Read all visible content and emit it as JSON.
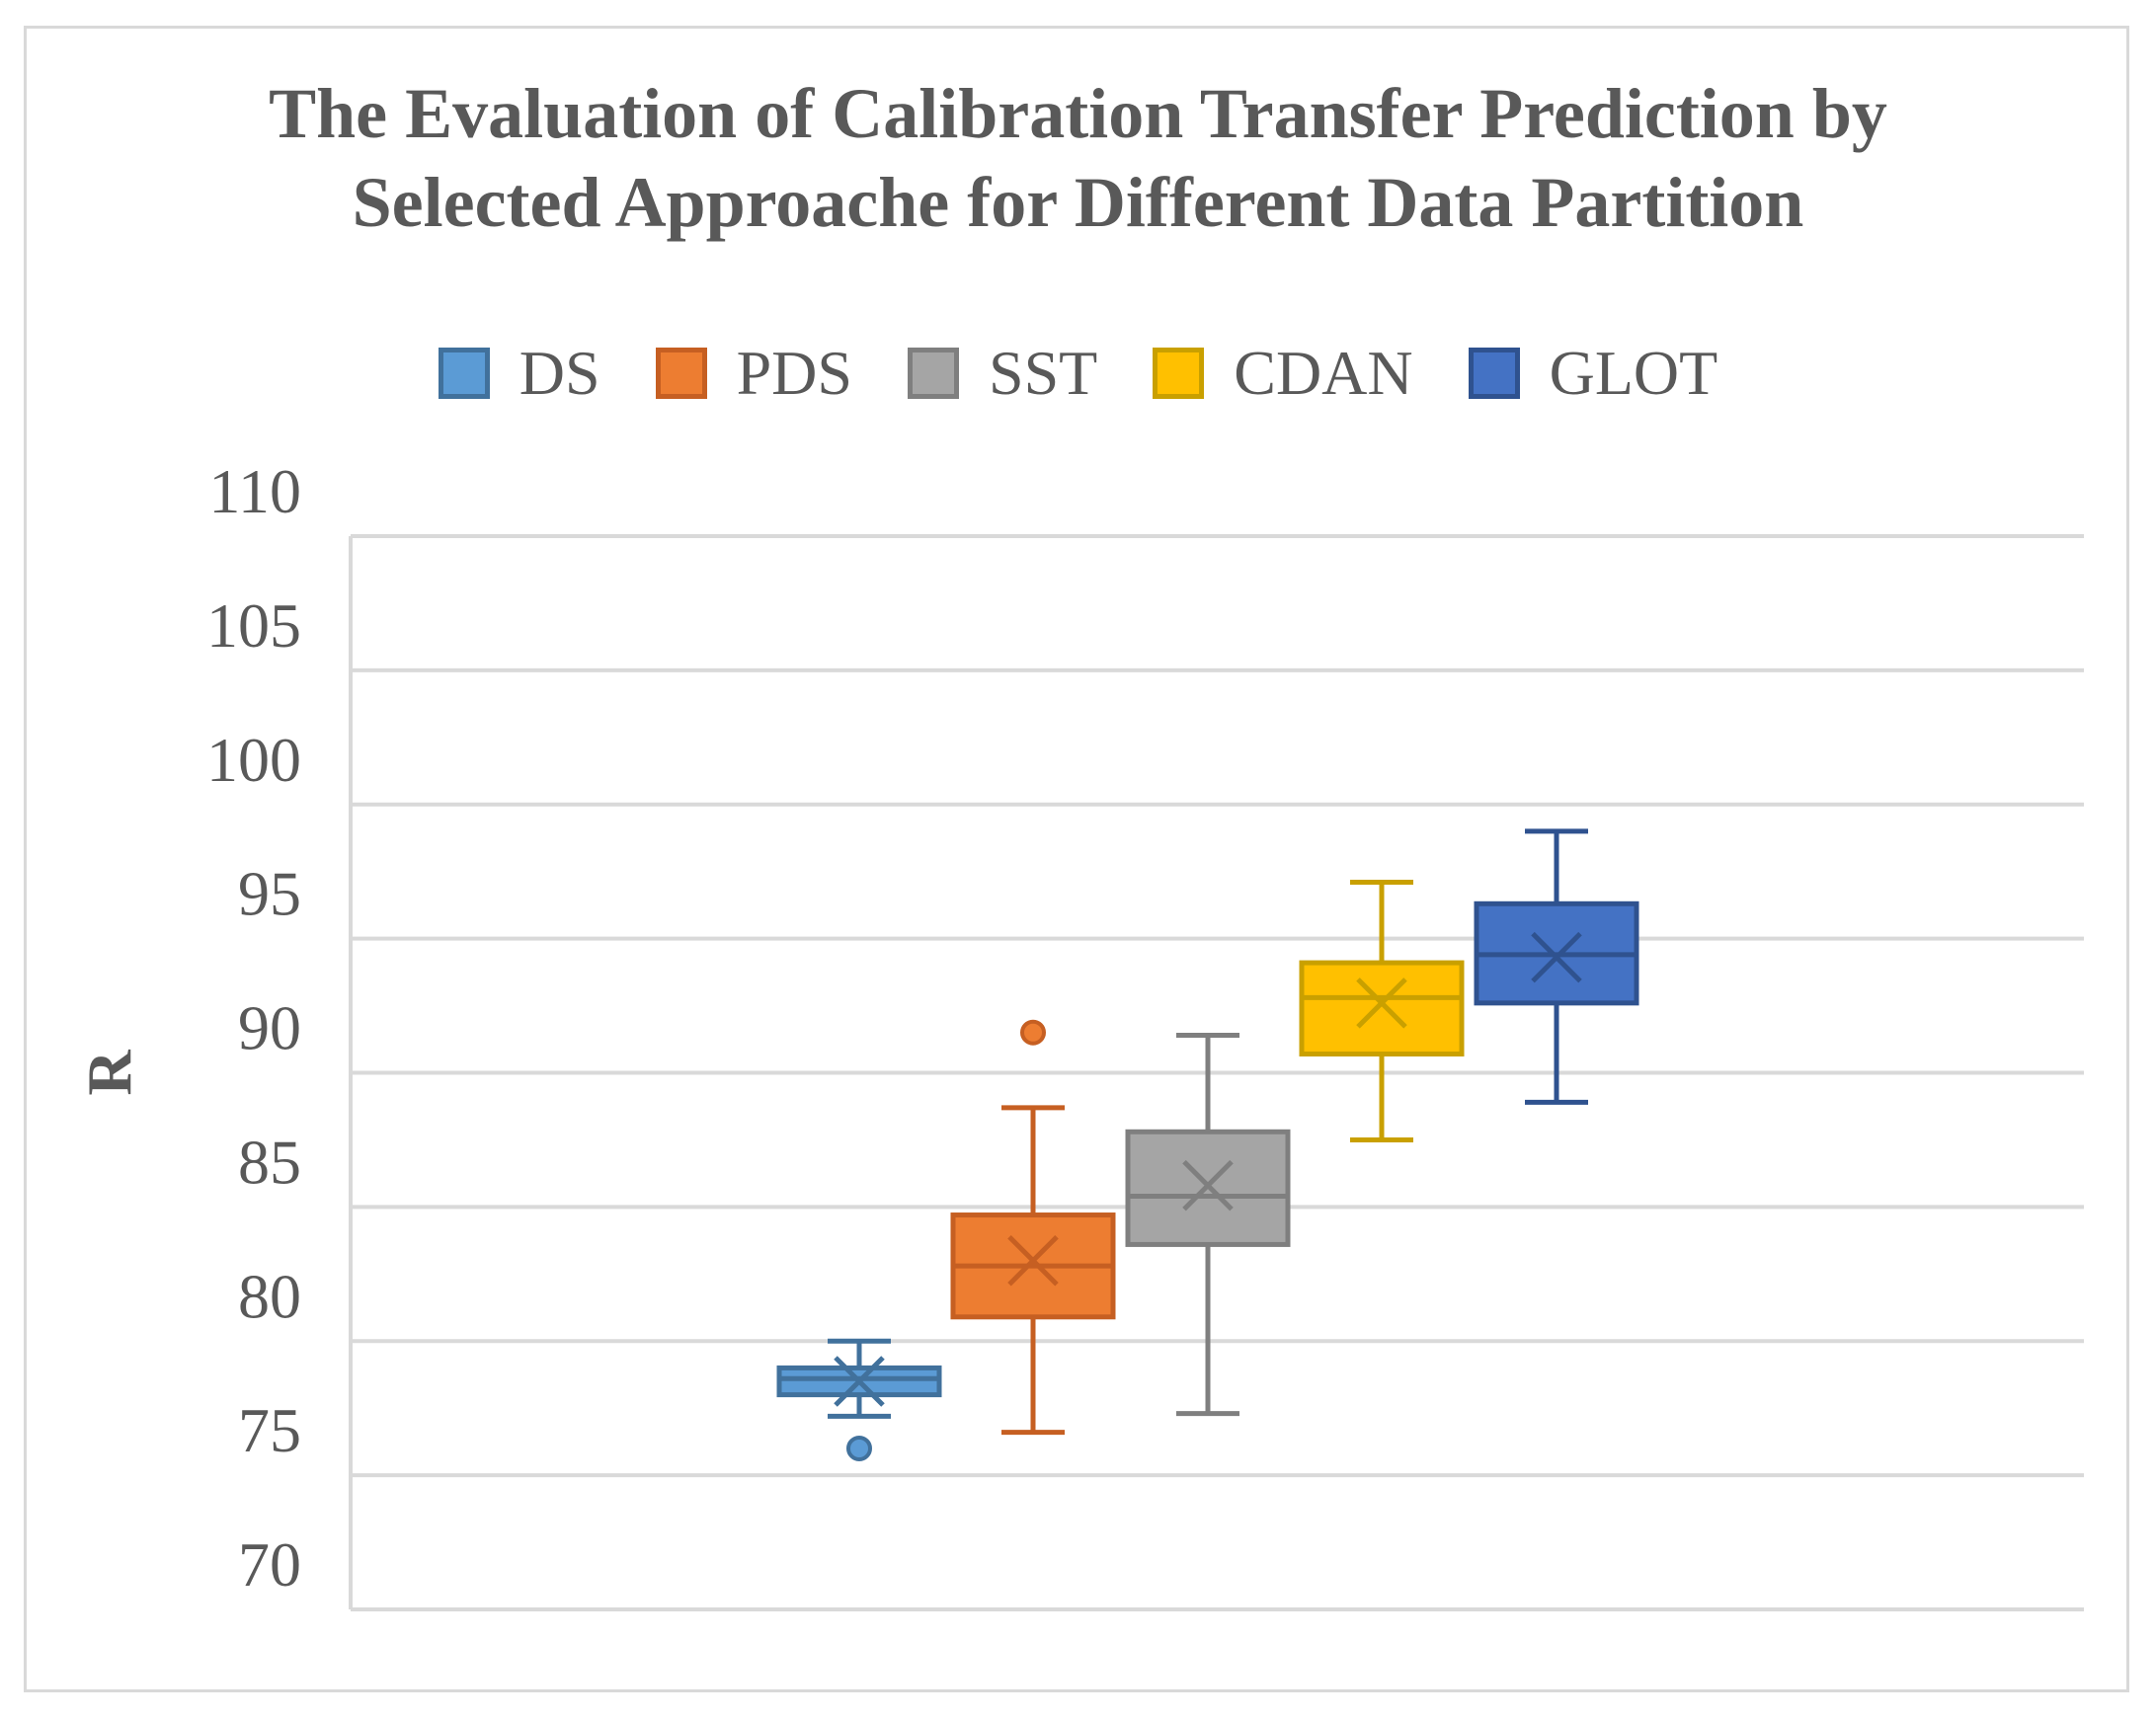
{
  "chart_data": {
    "type": "boxplot",
    "title_lines": [
      "The Evaluation of Calibration Transfer Prediction by",
      "Selected Approache for Different Data Partition"
    ],
    "ylabel": "R",
    "xlabel": "",
    "ylim": [
      70,
      110
    ],
    "yticks": [
      70,
      75,
      80,
      85,
      90,
      95,
      100,
      105,
      110
    ],
    "grid": true,
    "legend_position": "top",
    "series": [
      {
        "name": "DS",
        "color": "#5b9bd5",
        "stroke": "#41719c",
        "min": 77.2,
        "q1": 78.0,
        "median": 78.6,
        "q3": 79.0,
        "max": 80.0,
        "mean": 78.5,
        "outliers": [
          76.0
        ]
      },
      {
        "name": "PDS",
        "color": "#ed7d31",
        "stroke": "#c65f22",
        "min": 76.6,
        "q1": 80.9,
        "median": 82.8,
        "q3": 84.7,
        "max": 88.7,
        "mean": 83.0,
        "outliers": [
          91.5
        ]
      },
      {
        "name": "SST",
        "color": "#a5a5a5",
        "stroke": "#7f7f7f",
        "min": 77.3,
        "q1": 83.6,
        "median": 85.4,
        "q3": 87.8,
        "max": 91.4,
        "mean": 85.8,
        "outliers": []
      },
      {
        "name": "CDAN",
        "color": "#ffc000",
        "stroke": "#c9a000",
        "min": 87.5,
        "q1": 90.7,
        "median": 92.8,
        "q3": 94.1,
        "max": 97.1,
        "mean": 92.6,
        "outliers": []
      },
      {
        "name": "GLOT",
        "color": "#4472c4",
        "stroke": "#2f528f",
        "min": 88.9,
        "q1": 92.6,
        "median": 94.4,
        "q3": 96.3,
        "max": 99.0,
        "mean": 94.3,
        "outliers": []
      }
    ]
  }
}
